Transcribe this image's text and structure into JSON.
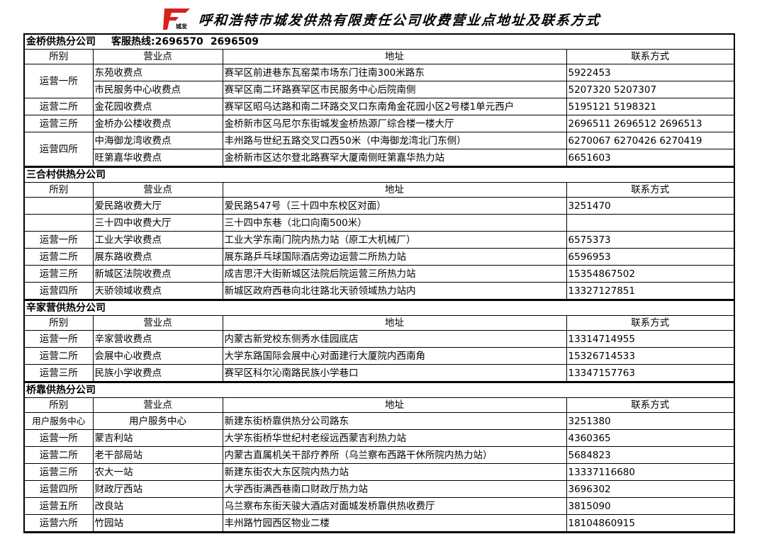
{
  "title": "呼和浩特市城发供热有限责任公司收费营业点地址及联系方式",
  "logo": {
    "text": "城发",
    "color": "#d8201f"
  },
  "columns": [
    "所别",
    "营业点",
    "地址",
    "联系方式"
  ],
  "sections": [
    {
      "name": "金桥供热分公司",
      "hotline_label": "客服热线:",
      "hotlines": [
        "2696570",
        "2696509"
      ],
      "groups": [
        {
          "dept": "运营一所",
          "points": [
            {
              "name": "东苑收费点",
              "address": "赛罕区前进巷东瓦窑菜市场东门往南300米路东",
              "phone": "5922453"
            },
            {
              "name": "市民服务中心收费点",
              "address": "赛罕区南二环路赛罕区市民服务中心后院南侧",
              "phone": "5207320 5207307"
            }
          ]
        },
        {
          "dept": "运营二所",
          "points": [
            {
              "name": "金花园收费点",
              "address": "赛罕区昭乌达路和南二环路交叉口东南角金花园小区2号楼1单元西户",
              "phone": "5195121 5198321"
            }
          ]
        },
        {
          "dept": "运营三所",
          "points": [
            {
              "name": "金桥办公楼收费点",
              "address": "金桥新市区乌尼尔东街城发金桥热源厂综合楼一楼大厅",
              "phone": "2696511   2696512   2696513"
            }
          ]
        },
        {
          "dept": "运营四所",
          "points": [
            {
              "name": "中海御龙湾收费点",
              "address": "丰州路与世纪五路交叉口西50米（中海御龙湾北门东侧）",
              "phone": "6270067   6270426   6270419"
            },
            {
              "name": "旺第嘉华收费点",
              "address": "金桥新市区达尔登北路赛罕大厦南侧旺第嘉华热力站",
              "phone": "6651603"
            }
          ]
        }
      ]
    },
    {
      "name": "三合村供热分公司",
      "groups": [
        {
          "dept": "",
          "points": [
            {
              "name": "爱民路收费大厅",
              "address": "爱民路547号（三十四中东校区对面）",
              "phone": "3251470"
            }
          ]
        },
        {
          "dept": "",
          "points": [
            {
              "name": "三十四中收费大厅",
              "address": "三十四中东巷（北口向南500米）",
              "phone": ""
            }
          ]
        },
        {
          "dept": "运营一所",
          "points": [
            {
              "name": "工业大学收费点",
              "address": "工业大学东南门院内热力站（原工大机械厂）",
              "phone": "6575373"
            }
          ]
        },
        {
          "dept": "运营二所",
          "points": [
            {
              "name": "展东路收费点",
              "address": "展东路乒乓球国际酒店旁边运营二所热力站",
              "phone": "6596953"
            }
          ]
        },
        {
          "dept": "运营三所",
          "points": [
            {
              "name": "新城区法院收费点",
              "address": "成吉思汗大街新城区法院后院运营三所热力站",
              "phone": "15354867502"
            }
          ]
        },
        {
          "dept": "运营四所",
          "points": [
            {
              "name": "天骄领域收费点",
              "address": "新城区政府西巷向北往路北天骄领域热力站内",
              "phone": "13327127851"
            }
          ]
        }
      ]
    },
    {
      "name": "辛家营供热分公司",
      "groups": [
        {
          "dept": "运营一所",
          "points": [
            {
              "name": "辛家营收费点",
              "address": "内蒙古新党校东侧秀水佳园底店",
              "phone": "13314714955"
            }
          ]
        },
        {
          "dept": "运营二所",
          "points": [
            {
              "name": "会展中心收费点",
              "address": "大学东路国际会展中心对面建行大厦院内西南角",
              "phone": "15326714533"
            }
          ]
        },
        {
          "dept": "运营三所",
          "points": [
            {
              "name": "民族小学收费点",
              "address": "赛罕区科尔沁南路民族小学巷口",
              "phone": "13347157763"
            }
          ]
        }
      ]
    },
    {
      "name": "桥靠供热分公司",
      "groups": [
        {
          "dept": "用户服务中心",
          "points": [
            {
              "name": "用户服务中心",
              "address": "新建东街桥靠供热分公司路东",
              "phone": "3251380",
              "center": true
            }
          ]
        },
        {
          "dept": "运营一所",
          "points": [
            {
              "name": "蒙吉利站",
              "address": "大学东街桥华世纪村老绥远西蒙吉利热力站",
              "phone": "4360365"
            }
          ]
        },
        {
          "dept": "运营二所",
          "points": [
            {
              "name": "老干部局站",
              "address": "内蒙古直属机关干部疗养所（乌兰察布西路干休所院内热力站）",
              "phone": "5684823"
            }
          ]
        },
        {
          "dept": "运营三所",
          "points": [
            {
              "name": "农大一站",
              "address": "新建东街农大东区院内热力站",
              "phone": "13337116680"
            }
          ]
        },
        {
          "dept": "运营四所",
          "points": [
            {
              "name": "财政厅西站",
              "address": "大学西街满西巷南口财政厅热力站",
              "phone": "3696302"
            }
          ]
        },
        {
          "dept": "运营五所",
          "points": [
            {
              "name": "改良站",
              "address": "乌兰察布东街天骏大酒店对面城发桥靠供热收费厅",
              "phone": "3815090"
            }
          ]
        },
        {
          "dept": "运营六所",
          "points": [
            {
              "name": "竹园站",
              "address": "丰州路竹园西区物业二楼",
              "phone": "18104860915"
            }
          ]
        }
      ]
    }
  ]
}
